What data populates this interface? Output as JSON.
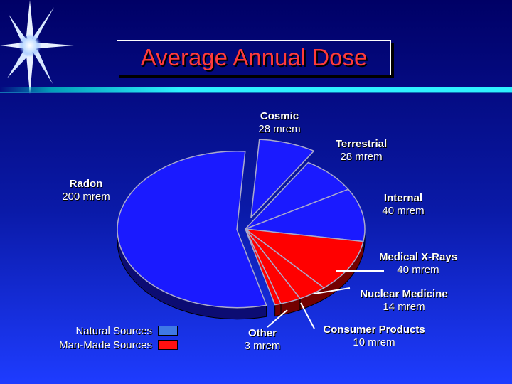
{
  "chart_data": {
    "type": "pie",
    "title": "Average Annual Dose",
    "slices": [
      {
        "name": "Cosmic",
        "value": 28,
        "value_label": "28 mrem",
        "group": "natural"
      },
      {
        "name": "Terrestrial",
        "value": 28,
        "value_label": "28 mrem",
        "group": "natural"
      },
      {
        "name": "Internal",
        "value": 40,
        "value_label": "40 mrem",
        "group": "natural"
      },
      {
        "name": "Medical X-Rays",
        "value": 40,
        "value_label": "40 mrem",
        "group": "manmade"
      },
      {
        "name": "Nuclear Medicine",
        "value": 14,
        "value_label": "14 mrem",
        "group": "manmade"
      },
      {
        "name": "Consumer Products",
        "value": 10,
        "value_label": "10 mrem",
        "group": "manmade"
      },
      {
        "name": "Other",
        "value": 3,
        "value_label": "3 mrem",
        "group": "manmade"
      },
      {
        "name": "Radon",
        "value": 200,
        "value_label": "200 mrem",
        "group": "natural"
      }
    ],
    "legend": [
      {
        "label": "Natural Sources",
        "color": "#3f78e6"
      },
      {
        "label": "Man-Made Sources",
        "color": "#ff1010"
      }
    ],
    "colors": {
      "natural": "#1a1aff",
      "manmade": "#ff0000"
    }
  }
}
